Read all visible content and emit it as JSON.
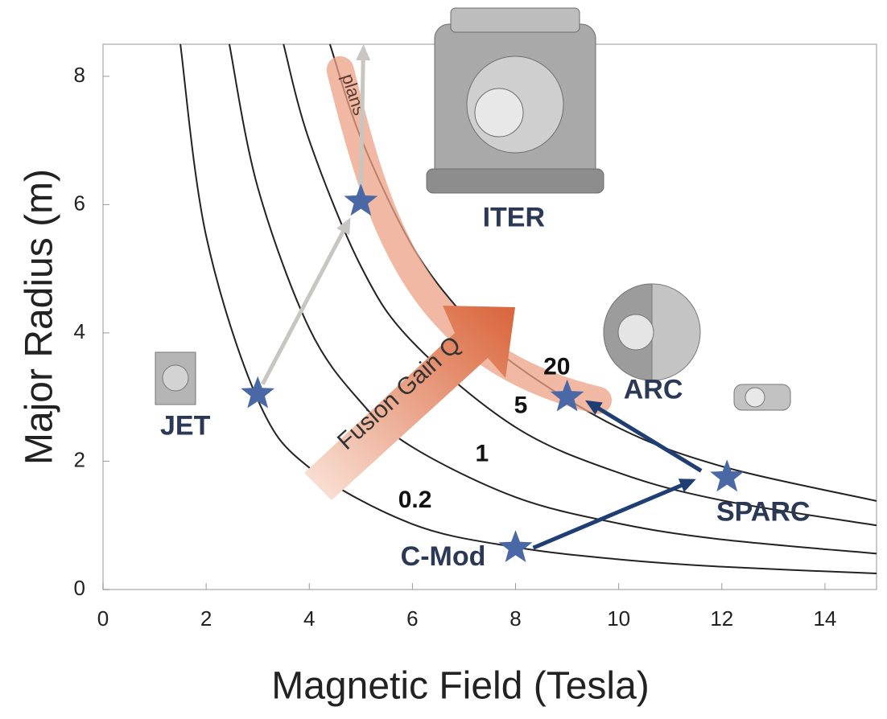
{
  "chart_data": {
    "type": "scatter",
    "xlabel": "Magnetic Field (Tesla)",
    "ylabel": "Major Radius (m)",
    "xlim": [
      0,
      15
    ],
    "ylim": [
      0,
      8.5
    ],
    "xticks": [
      0,
      2,
      4,
      6,
      8,
      10,
      12,
      14
    ],
    "yticks": [
      0,
      2,
      4,
      6,
      8
    ],
    "curves": [
      {
        "name": "0.2",
        "color": "#222222",
        "x": [
          1.5,
          2,
          3,
          4,
          6,
          8,
          10,
          12,
          15
        ],
        "values": [
          8.5,
          5.51,
          2.96,
          1.9,
          1.02,
          0.66,
          0.47,
          0.355,
          0.25
        ]
      },
      {
        "name": "1",
        "color": "#222222",
        "x": [
          2.45,
          3,
          4,
          5,
          6,
          8,
          10,
          12,
          15
        ],
        "values": [
          8.5,
          6.27,
          4.07,
          2.92,
          2.22,
          1.44,
          1.03,
          0.78,
          0.56
        ]
      },
      {
        "name": "5",
        "color": "#222222",
        "x": [
          3.5,
          4,
          5,
          6,
          8,
          10,
          12,
          15
        ],
        "values": [
          8.5,
          7.0,
          5.04,
          3.86,
          2.53,
          1.82,
          1.39,
          1.0
        ]
      },
      {
        "name": "20",
        "color": "#222222",
        "x": [
          4.4,
          5,
          6,
          7,
          8,
          10,
          12,
          15
        ],
        "values": [
          8.5,
          7.04,
          5.35,
          4.27,
          3.5,
          2.52,
          1.92,
          1.38
        ]
      }
    ],
    "points": {
      "color": "#4a68a6",
      "names": [
        "JET",
        "ITER",
        "ARC",
        "SPARC",
        "C-Mod"
      ],
      "x": [
        3,
        5,
        9,
        12.1,
        8
      ],
      "values": [
        3.05,
        6.05,
        3.0,
        1.75,
        0.65
      ]
    },
    "annotations": [
      "Fusion Gain Q",
      "plans"
    ]
  }
}
